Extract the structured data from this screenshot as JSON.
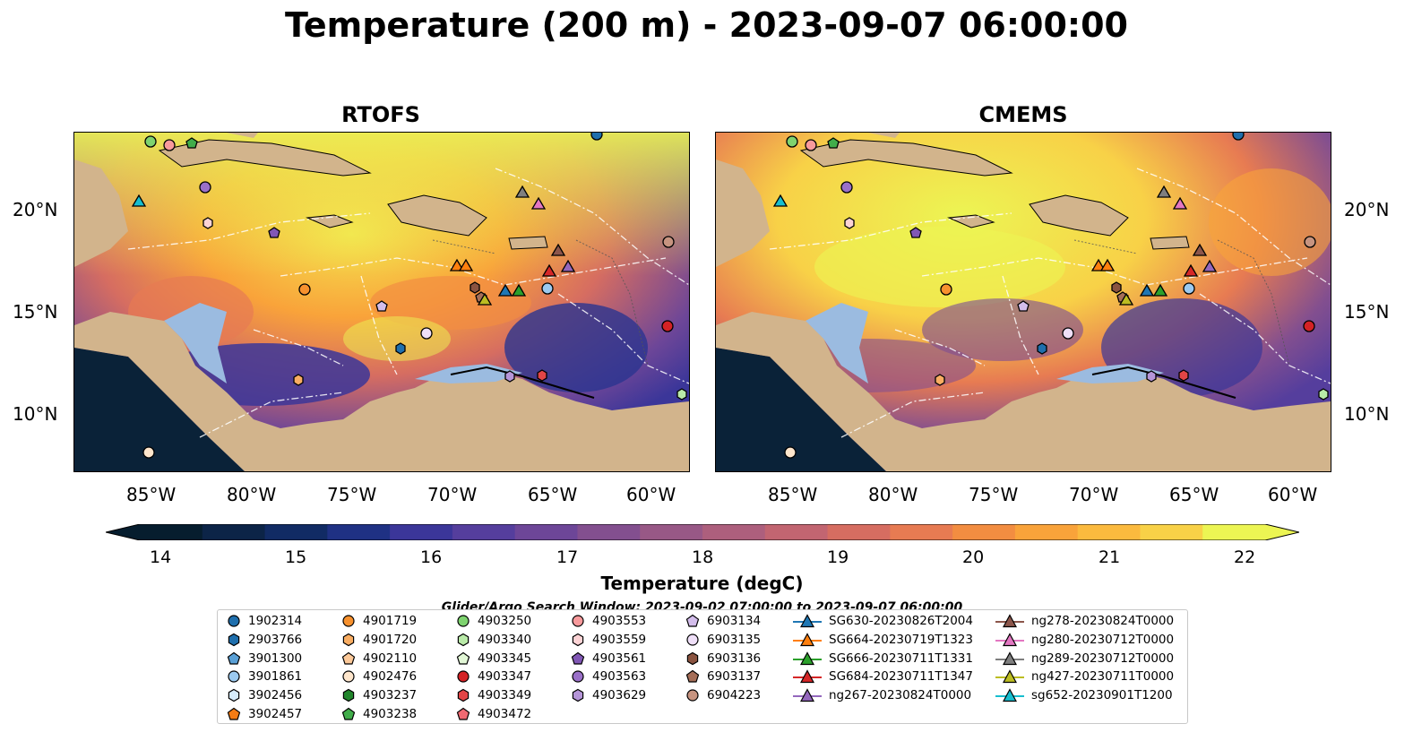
{
  "title": "Temperature (200 m) - 2023-09-07 06:00:00",
  "panels": [
    {
      "title": "RTOFS"
    },
    {
      "title": "CMEMS"
    }
  ],
  "axes": {
    "lon_ticks": [
      "85°W",
      "80°W",
      "75°W",
      "70°W",
      "65°W",
      "60°W"
    ],
    "lat_ticks": [
      "20°N",
      "15°N",
      "10°N"
    ],
    "lon_range": [
      -89,
      -58
    ],
    "lat_range": [
      7,
      24
    ]
  },
  "colorbar": {
    "label": "Temperature (degC)",
    "ticks": [
      "14",
      "15",
      "16",
      "17",
      "18",
      "19",
      "20",
      "21",
      "22"
    ],
    "range": [
      14,
      22
    ],
    "extend": "both",
    "colormap": [
      "#061d2e",
      "#0c2447",
      "#112b64",
      "#1f3184",
      "#3b3699",
      "#553e9d",
      "#6d4698",
      "#834f8f",
      "#985886",
      "#ad5f7d",
      "#c26571",
      "#d66d61",
      "#e77b52",
      "#f28d41",
      "#f9a33a",
      "#fbba3e",
      "#f8d147",
      "#ecf553"
    ]
  },
  "search_window": "Glider/Argo Search Window: 2023-09-02 07:00:00 to 2023-09-07 06:00:00",
  "colors": {
    "land": "#d2b48c",
    "shelf": "#9bbbe0",
    "deep_cold": "#0a2238"
  },
  "legend": [
    {
      "label": "1902314",
      "marker": "circle",
      "color": "#1f6fad"
    },
    {
      "label": "2903766",
      "marker": "hexagon",
      "color": "#1f6fad"
    },
    {
      "label": "3901300",
      "marker": "pentagon",
      "color": "#5aa0d6"
    },
    {
      "label": "3901861",
      "marker": "circle",
      "color": "#9ccaf0"
    },
    {
      "label": "3902456",
      "marker": "hexagon",
      "color": "#d6ecfb"
    },
    {
      "label": "3902457",
      "marker": "pentagon",
      "color": "#f57c14"
    },
    {
      "label": "4901719",
      "marker": "circle",
      "color": "#f7912e"
    },
    {
      "label": "4901720",
      "marker": "hexagon",
      "color": "#f9ad62"
    },
    {
      "label": "4902110",
      "marker": "pentagon",
      "color": "#fcc999"
    },
    {
      "label": "4902476",
      "marker": "circle",
      "color": "#fee6cc"
    },
    {
      "label": "4903237",
      "marker": "hexagon",
      "color": "#22862c"
    },
    {
      "label": "4903238",
      "marker": "pentagon",
      "color": "#41ad4a"
    },
    {
      "label": "4903250",
      "marker": "circle",
      "color": "#7ed36f"
    },
    {
      "label": "4903340",
      "marker": "hexagon",
      "color": "#b9eaa8"
    },
    {
      "label": "4903345",
      "marker": "pentagon",
      "color": "#e2f7d6"
    },
    {
      "label": "4903347",
      "marker": "circle",
      "color": "#d42225"
    },
    {
      "label": "4903349",
      "marker": "hexagon",
      "color": "#e24546"
    },
    {
      "label": "4903472",
      "marker": "pentagon",
      "color": "#f06a72"
    },
    {
      "label": "4903553",
      "marker": "circle",
      "color": "#f89a9c"
    },
    {
      "label": "4903559",
      "marker": "hexagon",
      "color": "#fcd3d5"
    },
    {
      "label": "4903561",
      "marker": "pentagon",
      "color": "#8157b5"
    },
    {
      "label": "4903563",
      "marker": "circle",
      "color": "#9a70c8"
    },
    {
      "label": "4903629",
      "marker": "hexagon",
      "color": "#b595d8"
    },
    {
      "label": "6903134",
      "marker": "pentagon",
      "color": "#d3bdeb"
    },
    {
      "label": "6903135",
      "marker": "circle",
      "color": "#efdff8"
    },
    {
      "label": "6903136",
      "marker": "hexagon",
      "color": "#8a5340"
    },
    {
      "label": "6903137",
      "marker": "pentagon",
      "color": "#a56e58"
    },
    {
      "label": "6904223",
      "marker": "circle",
      "color": "#c79480"
    },
    {
      "label": "SG630-20230826T2004",
      "marker": "triangle-line",
      "color": "#1f77b4"
    },
    {
      "label": "SG664-20230719T1323",
      "marker": "triangle-line",
      "color": "#ff7f0e"
    },
    {
      "label": "SG666-20230711T1331",
      "marker": "triangle-line",
      "color": "#2ca02c"
    },
    {
      "label": "SG684-20230711T1347",
      "marker": "triangle-line",
      "color": "#d62728"
    },
    {
      "label": "ng267-20230824T0000",
      "marker": "triangle-line",
      "color": "#9467bd"
    },
    {
      "label": "ng278-20230824T0000",
      "marker": "triangle-line",
      "color": "#8c564b"
    },
    {
      "label": "ng280-20230712T0000",
      "marker": "triangle-line",
      "color": "#e377c2"
    },
    {
      "label": "ng289-20230712T0000",
      "marker": "triangle-line",
      "color": "#7f7f7f"
    },
    {
      "label": "ng427-20230711T0000",
      "marker": "triangle-line",
      "color": "#bcbd22"
    },
    {
      "label": "sg652-20230901T1200",
      "marker": "triangle-line",
      "color": "#17becf"
    }
  ]
}
